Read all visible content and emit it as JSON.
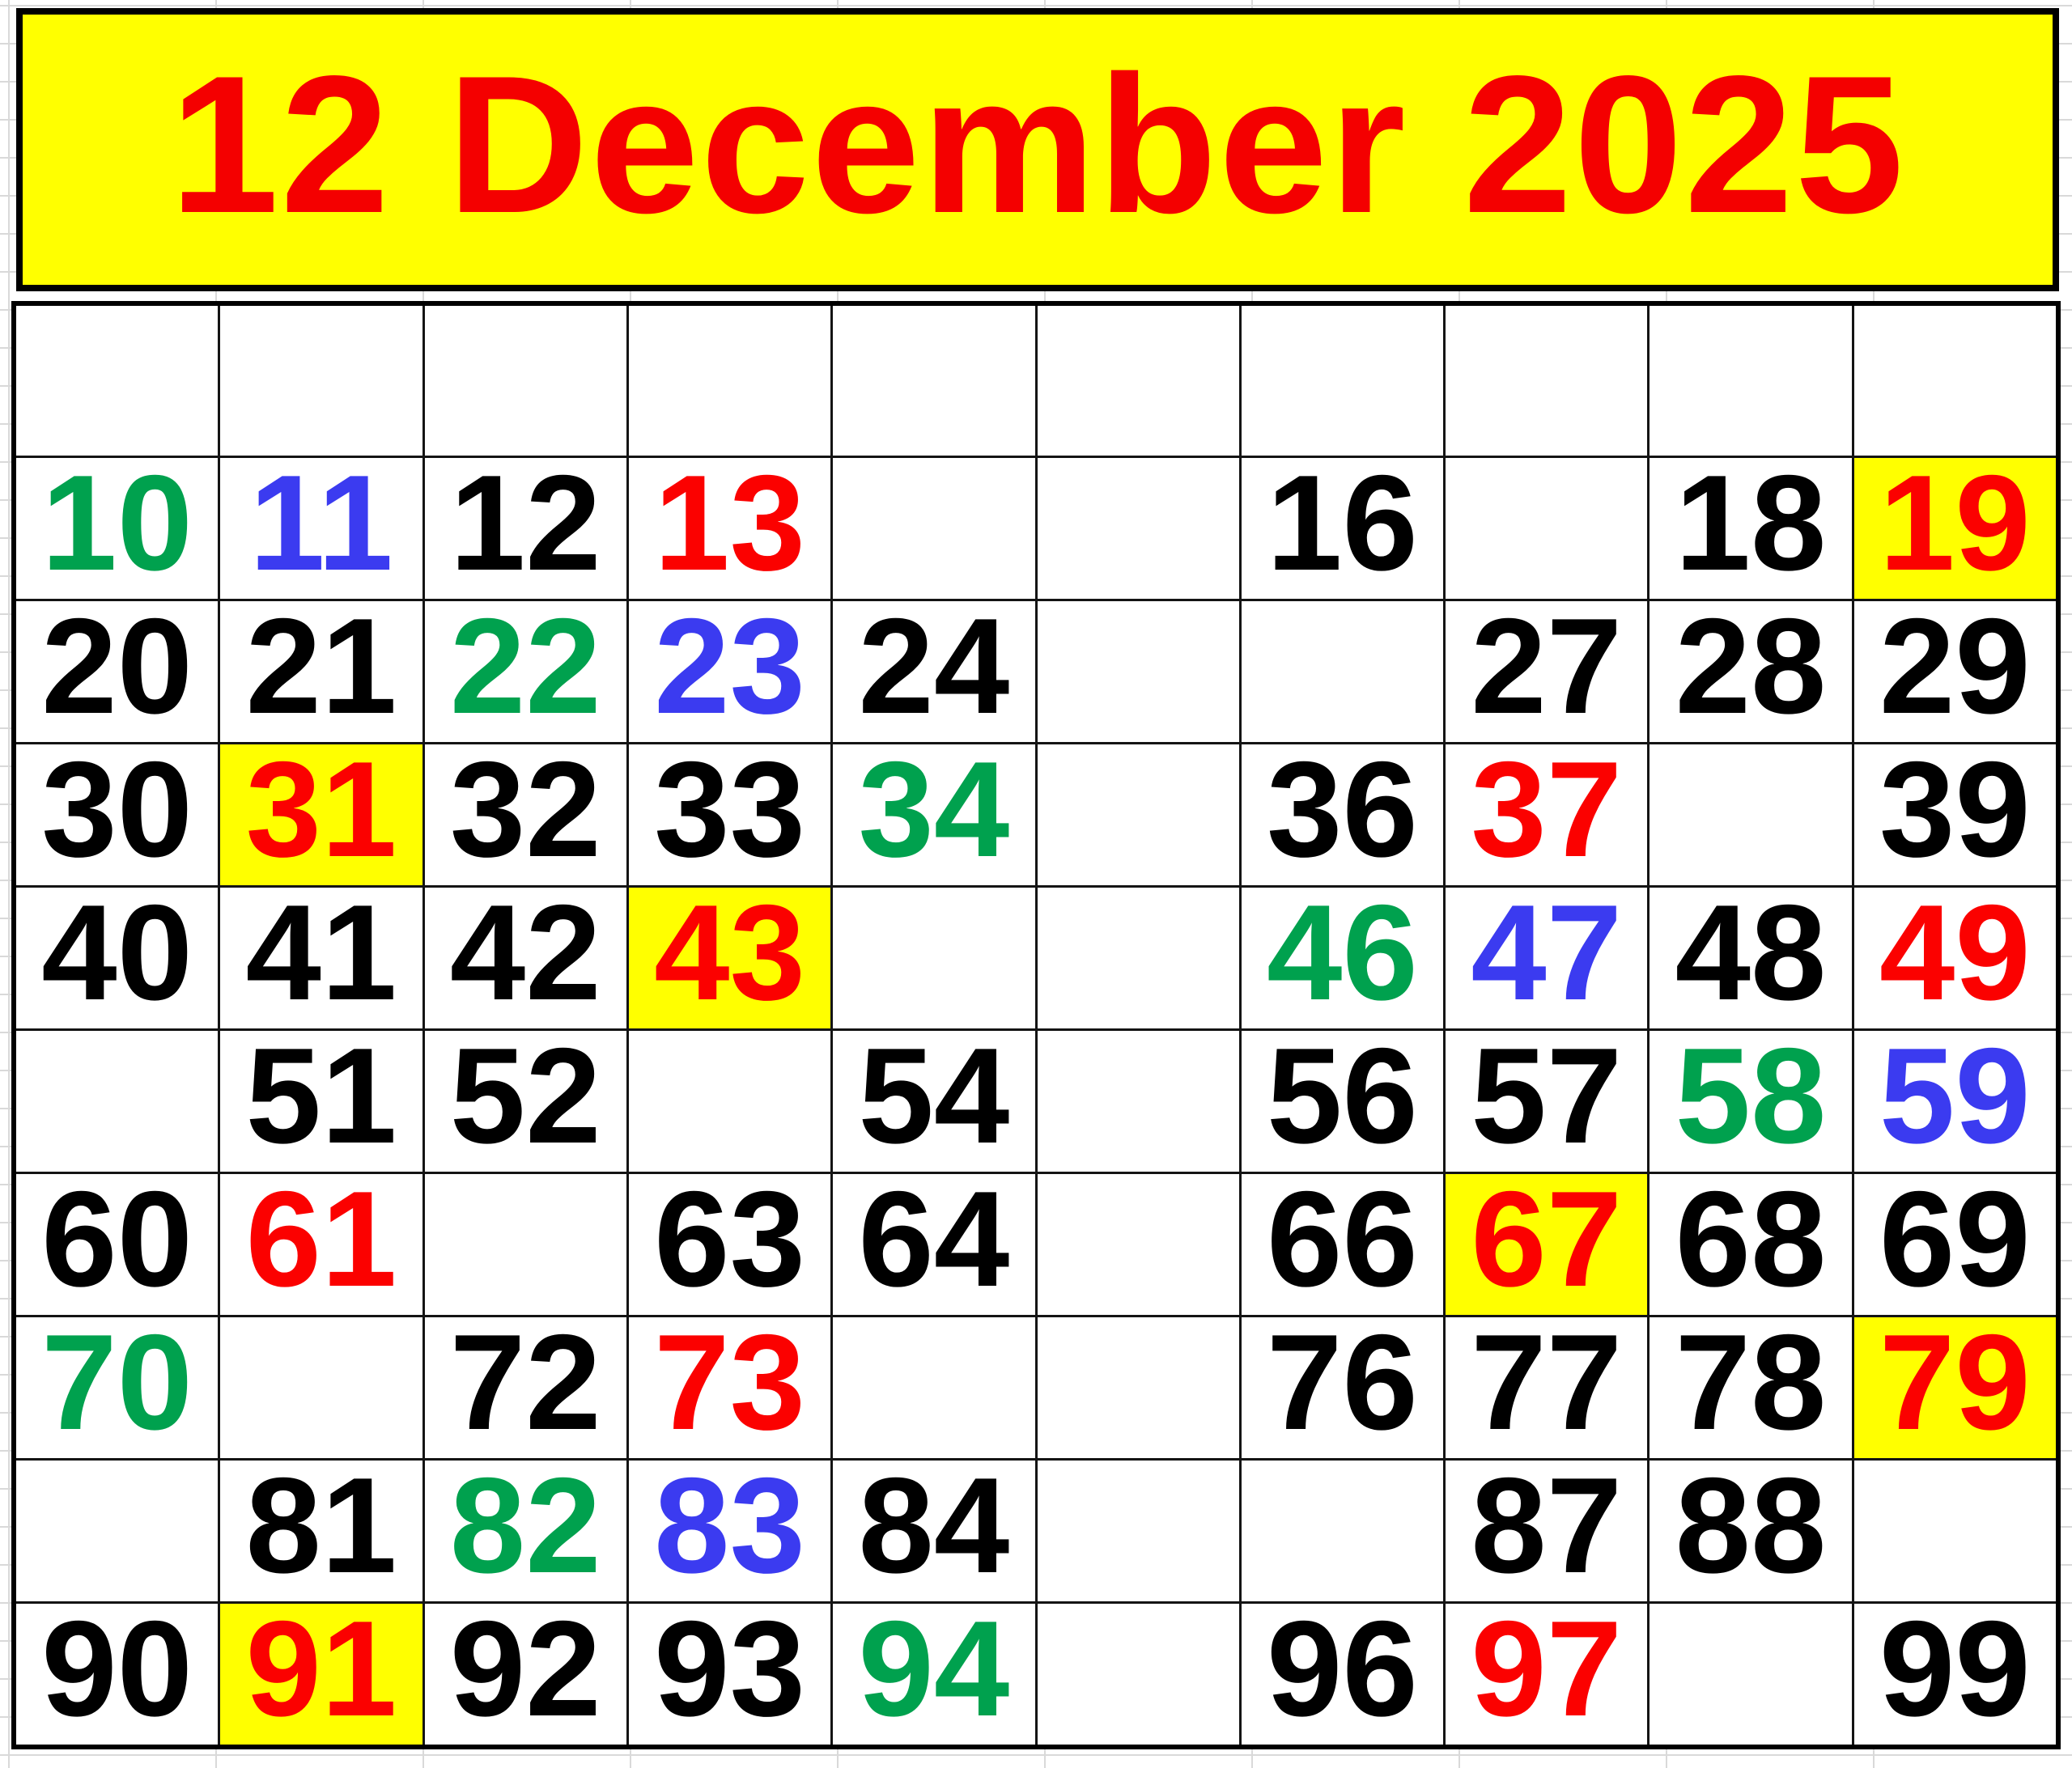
{
  "header": {
    "title": "12 December 2025"
  },
  "colors": {
    "black": "#000000",
    "red": "#FB0100",
    "green": "#00A14E",
    "blue": "#3B3BF0",
    "highlight": "#FFFF00",
    "header_bg": "#FFFF00",
    "header_text": "#F40000",
    "grid_line": "#141414"
  },
  "grid": {
    "columns": 10,
    "rows": [
      [
        null,
        null,
        null,
        null,
        null,
        null,
        null,
        null,
        null,
        null
      ],
      [
        {
          "n": "10",
          "color": "green"
        },
        {
          "n": "11",
          "color": "blue"
        },
        {
          "n": "12",
          "color": "black"
        },
        {
          "n": "13",
          "color": "red"
        },
        null,
        null,
        {
          "n": "16",
          "color": "black"
        },
        null,
        {
          "n": "18",
          "color": "black"
        },
        {
          "n": "19",
          "color": "red",
          "hl": true
        }
      ],
      [
        {
          "n": "20",
          "color": "black"
        },
        {
          "n": "21",
          "color": "black"
        },
        {
          "n": "22",
          "color": "green"
        },
        {
          "n": "23",
          "color": "blue"
        },
        {
          "n": "24",
          "color": "black"
        },
        null,
        null,
        {
          "n": "27",
          "color": "black"
        },
        {
          "n": "28",
          "color": "black"
        },
        {
          "n": "29",
          "color": "black"
        }
      ],
      [
        {
          "n": "30",
          "color": "black"
        },
        {
          "n": "31",
          "color": "red",
          "hl": true
        },
        {
          "n": "32",
          "color": "black"
        },
        {
          "n": "33",
          "color": "black"
        },
        {
          "n": "34",
          "color": "green"
        },
        null,
        {
          "n": "36",
          "color": "black"
        },
        {
          "n": "37",
          "color": "red"
        },
        null,
        {
          "n": "39",
          "color": "black"
        }
      ],
      [
        {
          "n": "40",
          "color": "black"
        },
        {
          "n": "41",
          "color": "black"
        },
        {
          "n": "42",
          "color": "black"
        },
        {
          "n": "43",
          "color": "red",
          "hl": true
        },
        null,
        null,
        {
          "n": "46",
          "color": "green"
        },
        {
          "n": "47",
          "color": "blue"
        },
        {
          "n": "48",
          "color": "black"
        },
        {
          "n": "49",
          "color": "red"
        }
      ],
      [
        null,
        {
          "n": "51",
          "color": "black"
        },
        {
          "n": "52",
          "color": "black"
        },
        null,
        {
          "n": "54",
          "color": "black"
        },
        null,
        {
          "n": "56",
          "color": "black"
        },
        {
          "n": "57",
          "color": "black"
        },
        {
          "n": "58",
          "color": "green"
        },
        {
          "n": "59",
          "color": "blue"
        }
      ],
      [
        {
          "n": "60",
          "color": "black"
        },
        {
          "n": "61",
          "color": "red"
        },
        null,
        {
          "n": "63",
          "color": "black"
        },
        {
          "n": "64",
          "color": "black"
        },
        null,
        {
          "n": "66",
          "color": "black"
        },
        {
          "n": "67",
          "color": "red",
          "hl": true
        },
        {
          "n": "68",
          "color": "black"
        },
        {
          "n": "69",
          "color": "black"
        }
      ],
      [
        {
          "n": "70",
          "color": "green"
        },
        null,
        {
          "n": "72",
          "color": "black"
        },
        {
          "n": "73",
          "color": "red"
        },
        null,
        null,
        {
          "n": "76",
          "color": "black"
        },
        {
          "n": "77",
          "color": "black"
        },
        {
          "n": "78",
          "color": "black"
        },
        {
          "n": "79",
          "color": "red",
          "hl": true
        }
      ],
      [
        null,
        {
          "n": "81",
          "color": "black"
        },
        {
          "n": "82",
          "color": "green"
        },
        {
          "n": "83",
          "color": "blue"
        },
        {
          "n": "84",
          "color": "black"
        },
        null,
        null,
        {
          "n": "87",
          "color": "black"
        },
        {
          "n": "88",
          "color": "black"
        },
        null
      ],
      [
        {
          "n": "90",
          "color": "black"
        },
        {
          "n": "91",
          "color": "red",
          "hl": true
        },
        {
          "n": "92",
          "color": "black"
        },
        {
          "n": "93",
          "color": "black"
        },
        {
          "n": "94",
          "color": "green"
        },
        null,
        {
          "n": "96",
          "color": "black"
        },
        {
          "n": "97",
          "color": "red"
        },
        null,
        {
          "n": "99",
          "color": "black"
        }
      ]
    ]
  }
}
